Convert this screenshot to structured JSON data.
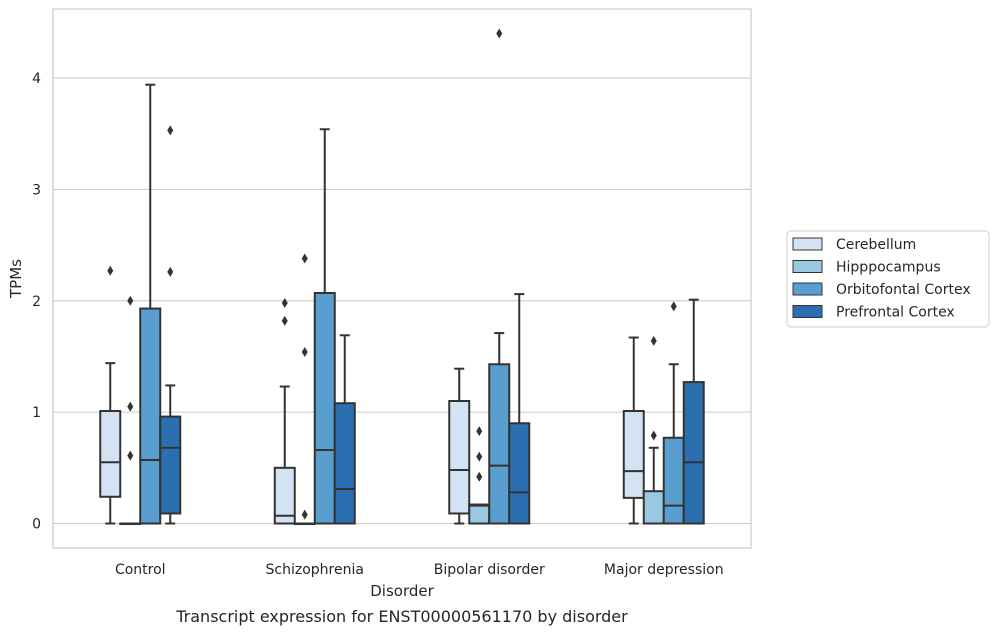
{
  "chart_data": {
    "type": "box",
    "caption": "Transcript expression for ENST00000561170 by disorder",
    "xlabel": "Disorder",
    "ylabel": "TPMs",
    "ylim": [
      -0.22,
      4.62
    ],
    "yticks": [
      0,
      1,
      2,
      3,
      4
    ],
    "grid": "horizontal",
    "legend_position": "right",
    "categories": [
      "Control",
      "Schizophrenia",
      "Bipolar disorder",
      "Major depression"
    ],
    "series": [
      {
        "name": "Cerebellum",
        "color": "#d3e3f3",
        "boxes": [
          {
            "whislo": 0.0,
            "q1": 0.24,
            "med": 0.55,
            "q3": 1.01,
            "whishi": 1.44,
            "fliers": [
              2.27
            ]
          },
          {
            "whislo": 0.0,
            "q1": 0.0,
            "med": 0.07,
            "q3": 0.5,
            "whishi": 1.23,
            "fliers": [
              1.98,
              1.82
            ]
          },
          {
            "whislo": 0.0,
            "q1": 0.09,
            "med": 0.48,
            "q3": 1.1,
            "whishi": 1.39,
            "fliers": []
          },
          {
            "whislo": 0.0,
            "q1": 0.23,
            "med": 0.47,
            "q3": 1.01,
            "whishi": 1.67,
            "fliers": []
          }
        ]
      },
      {
        "name": "Hipppocampus",
        "color": "#9ac8e0",
        "boxes": [
          {
            "whislo": 0.0,
            "q1": 0.0,
            "med": 0.0,
            "q3": 0.0,
            "whishi": 0.0,
            "fliers": [
              2.0,
              1.05,
              0.61
            ]
          },
          {
            "whislo": 0.0,
            "q1": 0.0,
            "med": 0.0,
            "q3": 0.0,
            "whishi": 0.0,
            "fliers": [
              2.38,
              1.54,
              0.08
            ]
          },
          {
            "whislo": 0.0,
            "q1": 0.0,
            "med": 0.16,
            "q3": 0.17,
            "whishi": 0.17,
            "fliers": [
              0.83,
              0.6,
              0.42
            ]
          },
          {
            "whislo": 0.0,
            "q1": 0.0,
            "med": 0.0,
            "q3": 0.29,
            "whishi": 0.68,
            "fliers": [
              1.64,
              0.79
            ]
          }
        ]
      },
      {
        "name": "Orbitofontal Cortex",
        "color": "#5a9ecf",
        "boxes": [
          {
            "whislo": 0.0,
            "q1": 0.0,
            "med": 0.57,
            "q3": 1.93,
            "whishi": 3.94,
            "fliers": []
          },
          {
            "whislo": 0.0,
            "q1": 0.0,
            "med": 0.66,
            "q3": 2.07,
            "whishi": 3.54,
            "fliers": []
          },
          {
            "whislo": 0.0,
            "q1": 0.0,
            "med": 0.52,
            "q3": 1.43,
            "whishi": 1.71,
            "fliers": [
              4.4
            ]
          },
          {
            "whislo": 0.0,
            "q1": 0.0,
            "med": 0.16,
            "q3": 0.77,
            "whishi": 1.43,
            "fliers": [
              1.95
            ]
          }
        ]
      },
      {
        "name": "Prefrontal Cortex",
        "color": "#2a6fb0",
        "boxes": [
          {
            "whislo": 0.0,
            "q1": 0.09,
            "med": 0.68,
            "q3": 0.96,
            "whishi": 1.24,
            "fliers": [
              3.53,
              2.26
            ]
          },
          {
            "whislo": 0.0,
            "q1": 0.0,
            "med": 0.31,
            "q3": 1.08,
            "whishi": 1.69,
            "fliers": []
          },
          {
            "whislo": 0.0,
            "q1": 0.0,
            "med": 0.28,
            "q3": 0.9,
            "whishi": 2.06,
            "fliers": []
          },
          {
            "whislo": 0.0,
            "q1": 0.0,
            "med": 0.55,
            "q3": 1.27,
            "whishi": 2.01,
            "fliers": []
          }
        ]
      }
    ]
  }
}
